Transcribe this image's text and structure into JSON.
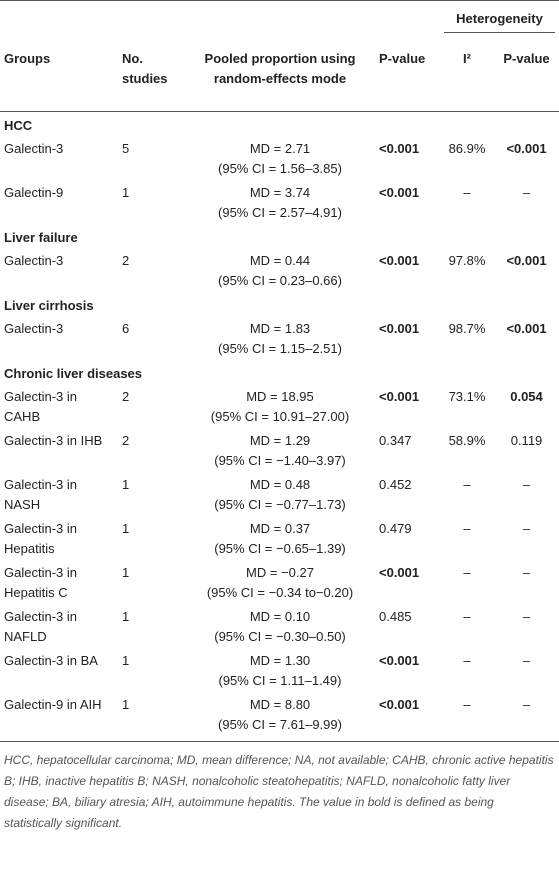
{
  "header": {
    "groups": "Groups",
    "studies": "No. studies",
    "pooled": "Pooled proportion using random-effects mode",
    "p": "P-value",
    "heterogeneity": "Heterogeneity",
    "i2": "I²",
    "p2": "P-value"
  },
  "sections": [
    {
      "title": "HCC",
      "rows": [
        {
          "group": "Galectin-3",
          "studies": 5,
          "md": "MD = 2.71",
          "ci": "(95% CI = 1.56–3.85)",
          "p": "<0.001",
          "i2": "86.9%",
          "p2": "<0.001"
        },
        {
          "group": "Galectin-9",
          "studies": 1,
          "md": "MD = 3.74",
          "ci": "(95% CI = 2.57–4.91)",
          "p": "<0.001",
          "i2": "–",
          "p2": "–"
        }
      ]
    },
    {
      "title": "Liver failure",
      "rows": [
        {
          "group": "Galectin-3",
          "studies": 2,
          "md": "MD = 0.44",
          "ci": "(95% CI = 0.23–0.66)",
          "p": "<0.001",
          "i2": "97.8%",
          "p2": "<0.001"
        }
      ]
    },
    {
      "title": "Liver cirrhosis",
      "rows": [
        {
          "group": "Galectin-3",
          "studies": 6,
          "md": "MD = 1.83",
          "ci": "(95% CI = 1.15–2.51)",
          "p": "<0.001",
          "i2": "98.7%",
          "p2": "<0.001"
        }
      ]
    },
    {
      "title": "Chronic liver diseases",
      "rows": [
        {
          "group": "Galectin-3 in CAHB",
          "studies": 2,
          "md": "MD = 18.95",
          "ci": "(95% CI = 10.91–27.00)",
          "p": "<0.001",
          "i2": "73.1%",
          "p2": "0.054"
        },
        {
          "group": "Galectin-3 in IHB",
          "studies": 2,
          "md": "MD = 1.29",
          "ci": "(95% CI = −1.40–3.97)",
          "p": "0.347",
          "i2": "58.9%",
          "p2": "0.119"
        },
        {
          "group": "Galectin-3 in NASH",
          "studies": 1,
          "md": "MD = 0.48",
          "ci": "(95% CI = −0.77–1.73)",
          "p": "0.452",
          "i2": "–",
          "p2": "–"
        },
        {
          "group": "Galectin-3 in Hepatitis",
          "studies": 1,
          "md": "MD = 0.37",
          "ci": "(95% CI = −0.65–1.39)",
          "p": "0.479",
          "i2": "–",
          "p2": "–"
        },
        {
          "group": "Galectin-3 in Hepatitis C",
          "studies": 1,
          "md": "MD = −0.27",
          "ci": "(95% CI = −0.34 to−0.20)",
          "p": "<0.001",
          "i2": "–",
          "p2": "–"
        },
        {
          "group": "Galectin-3 in NAFLD",
          "studies": 1,
          "md": "MD = 0.10",
          "ci": "(95% CI = −0.30–0.50)",
          "p": "0.485",
          "i2": "–",
          "p2": "–"
        },
        {
          "group": "Galectin-3 in BA",
          "studies": 1,
          "md": "MD = 1.30",
          "ci": "(95% CI = 1.11–1.49)",
          "p": "<0.001",
          "i2": "–",
          "p2": "–"
        },
        {
          "group": "Galectin-9 in AIH",
          "studies": 1,
          "md": "MD = 8.80",
          "ci": "(95% CI = 7.61–9.99)",
          "p": "<0.001",
          "i2": "–",
          "p2": "–"
        }
      ]
    }
  ],
  "footnote": "HCC, hepatocellular carcinoma; MD, mean difference; NA, not available; CAHB, chronic active hepatitis B; IHB, inactive hepatitis B; NASH, nonalcoholic steatohepatitis; NAFLD, nonalcoholic fatty liver disease; BA, biliary atresia; AIH, autoimmune hepatitis. The value in bold is defined as being statistically significant."
}
